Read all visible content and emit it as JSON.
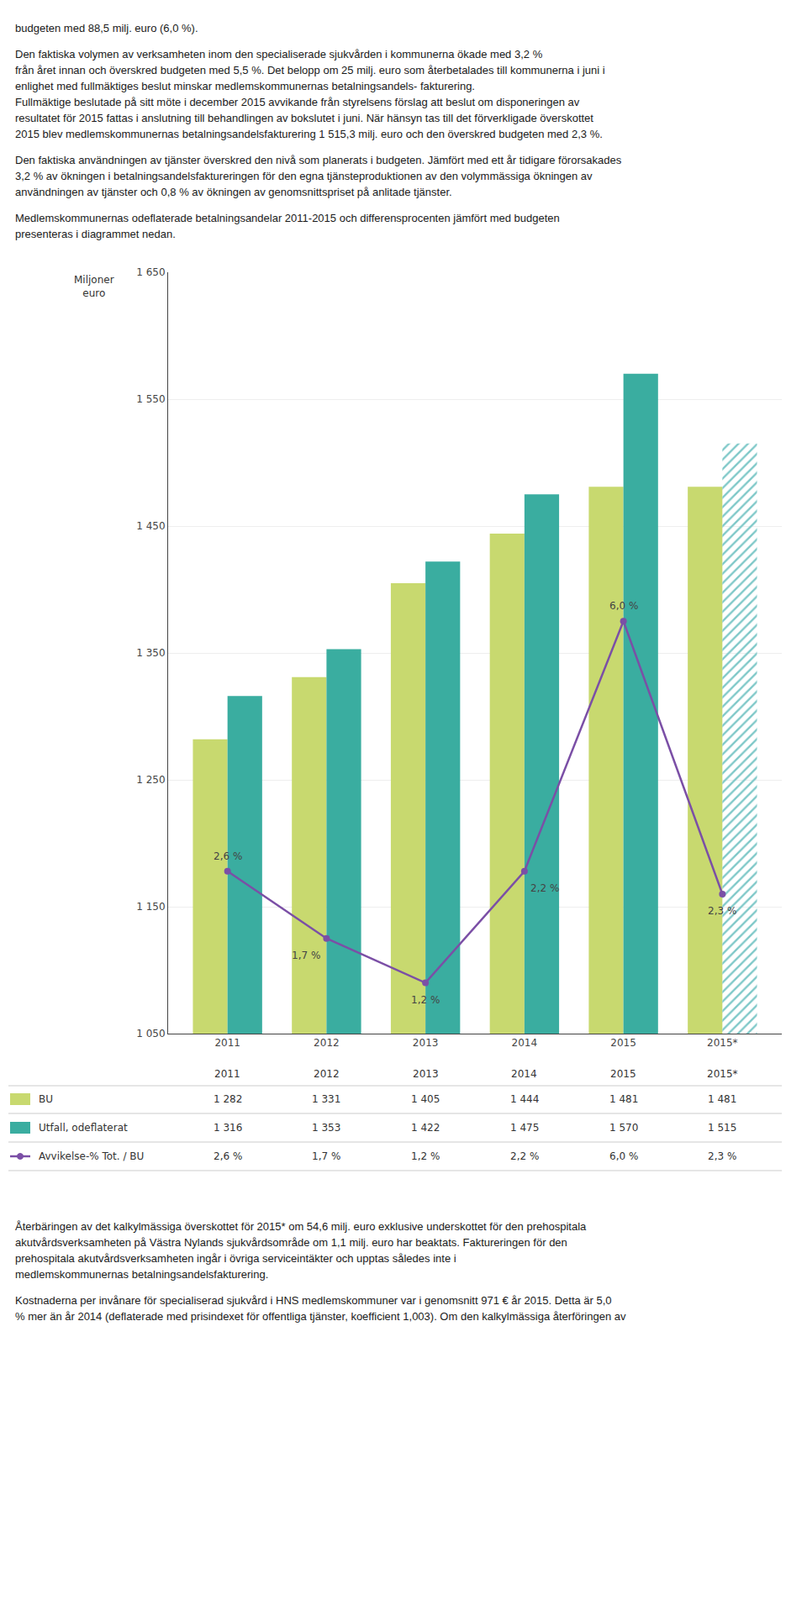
{
  "chart_data": {
    "type": "bar",
    "subtitle": [
      [
        "budgeten med 88,5 milj. euro (6,0 %)."
      ],
      [
        "Den faktiska volymen av verksamheten inom den specialiserade sjukvården i kommunerna ökade med 3,2 %",
        "från året innan och överskred budgeten med 5,5 %. Det belopp om 25 milj. euro som återbetalades till kommunerna i juni i",
        "enlighet med fullmäktiges beslut minskar medlemskommunernas betalningsandels- fakturering.",
        "Fullmäktige beslutade på sitt möte i december 2015 avvikande från styrelsens förslag att beslut om disponeringen av",
        "resultatet för 2015 fattas i anslutning till behandlingen av bokslutet i juni. När hänsyn tas till det förverkligade överskottet",
        "2015 blev medlemskommunernas betalningsandelsfakturering 1 515,3 milj. euro och den överskred budgeten med 2,3 %."
      ],
      [
        "Den faktiska användningen av tjänster överskred den nivå som planerats i budgeten. Jämfört med ett år tidigare förorsakades",
        "3,2 % av ökningen i betalningsandelsfaktureringen för den egna tjänsteproduktionen av den volymmässiga ökningen av",
        "användningen av tjänster och 0,8 % av ökningen av genomsnittspriset på anlitade tjänster."
      ],
      [
        "Medlemskommunernas odeflaterade betalningsandelar 2011-2015 och differensprocenten jämfört med budgeten",
        "presenteras i diagrammet nedan."
      ]
    ],
    "caption": [
      [
        "Återbäringen av det kalkylmässiga överskottet för 2015* om 54,6 milj. euro exklusive underskottet för den prehospitala",
        "akutvårdsverksamheten på Västra Nylands sjukvårdsområde om 1,1 milj. euro har beaktats. Faktureringen för den",
        "prehospitala akutvårdsverksamheten ingår i övriga serviceintäkter och upptas således inte i",
        "medlemskommunernas betalningsandelsfakturering."
      ],
      [
        "Kostnaderna per invånare för specialiserad sjukvård i HNS medlemskommuner var i genomsnitt 971 € år 2015. Detta är 5,0",
        "% mer än år 2014 (deflaterade med prisindexet för offentliga tjänster, koefficient 1,003). Om den kalkylmässiga återföringen av"
      ]
    ],
    "ylabel": "Miljoner\neuro",
    "categories": [
      "2011",
      "2012",
      "2013",
      "2014",
      "2015",
      "2015*"
    ],
    "series": [
      {
        "name": "BU",
        "color": "#c8d96f",
        "values": [
          1282,
          1331,
          1405,
          1444,
          1481,
          1481
        ],
        "value_labels": [
          "1 282",
          "1 331",
          "1 405",
          "1 444",
          "1 481",
          "1 481"
        ]
      },
      {
        "name": "Utfall, odeflaterat",
        "colors": [
          "#3aada0",
          "#3aada0",
          "#3aada0",
          "#3aada0",
          "#3aada0",
          "#7ec8c8"
        ],
        "values": [
          1316,
          1353,
          1422,
          1475,
          1570,
          1515
        ],
        "value_labels": [
          "1 316",
          "1 353",
          "1 422",
          "1 475",
          "1 570",
          "1 515"
        ]
      },
      {
        "name": "Avvikelse-% Tot. / BU",
        "type": "line",
        "color": "#7b4fa6",
        "marker": "circle",
        "values": [
          1178,
          1125,
          1090,
          1178,
          1375,
          1160
        ]
      }
    ],
    "annotations": [
      {
        "category": "2011",
        "text": "2,6 %"
      },
      {
        "category": "2012",
        "text": "1,7 %"
      },
      {
        "category": "2013",
        "text": "1,2 %"
      },
      {
        "category": "2014",
        "text": "2,2 %"
      },
      {
        "category": "2015",
        "text": "6,0 %"
      },
      {
        "category": "2015*",
        "text": "2,3 %"
      }
    ],
    "ylim": [
      1050,
      1650
    ],
    "yticks": [
      {
        "value": 1050,
        "label": "1 050"
      },
      {
        "value": 1150,
        "label": "1 150"
      },
      {
        "value": 1250,
        "label": "1 250"
      },
      {
        "value": 1350,
        "label": "1 350"
      },
      {
        "value": 1450,
        "label": "1 450"
      },
      {
        "value": 1550,
        "label": "1 550"
      },
      {
        "value": 1650,
        "label": "1 650"
      }
    ],
    "grid": true
  }
}
